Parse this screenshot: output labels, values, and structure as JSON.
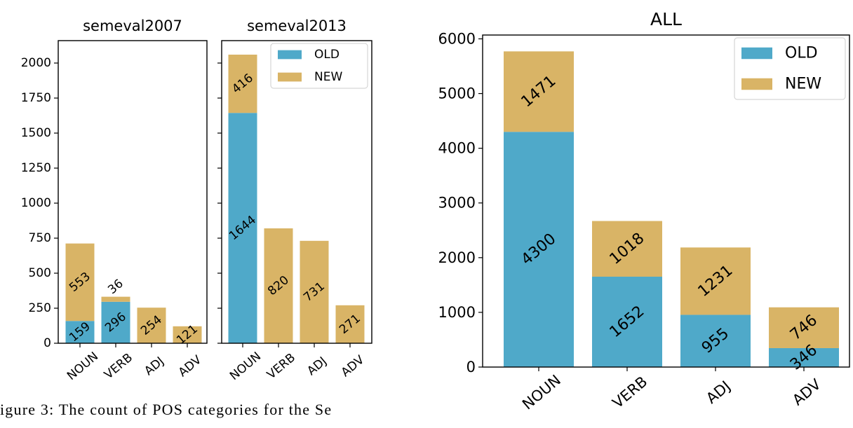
{
  "caption": "igure 3:  The count of POS categories for the Se",
  "colors": {
    "old": "#4fa9c9",
    "new": "#d9b466"
  },
  "legend": {
    "old": "OLD",
    "new": "NEW"
  },
  "chart_data": [
    {
      "type": "bar",
      "title": "semeval2007",
      "categories": [
        "NOUN",
        "VERB",
        "ADJ",
        "ADV"
      ],
      "stacked": true,
      "series": [
        {
          "name": "OLD",
          "values": [
            159,
            296,
            0,
            0
          ],
          "labels": [
            "159",
            "296",
            "",
            ""
          ]
        },
        {
          "name": "NEW",
          "values": [
            553,
            36,
            254,
            121
          ],
          "labels": [
            "553",
            "36",
            "254",
            "121"
          ]
        }
      ],
      "ylim": [
        0,
        2160
      ],
      "yticks": [
        0,
        250,
        500,
        750,
        1000,
        1250,
        1500,
        1750,
        2000
      ],
      "legend": false
    },
    {
      "type": "bar",
      "title": "semeval2013",
      "categories": [
        "NOUN",
        "VERB",
        "ADJ",
        "ADV"
      ],
      "stacked": true,
      "series": [
        {
          "name": "OLD",
          "values": [
            1644,
            0,
            0,
            0
          ],
          "labels": [
            "1644",
            "",
            "",
            ""
          ]
        },
        {
          "name": "NEW",
          "values": [
            416,
            820,
            731,
            271
          ],
          "labels": [
            "416",
            "820",
            "731",
            "271"
          ]
        }
      ],
      "ylim": [
        0,
        2160
      ],
      "yticks": [
        0,
        250,
        500,
        750,
        1000,
        1250,
        1500,
        1750,
        2000
      ],
      "legend": true,
      "legend_position": "top-right"
    },
    {
      "type": "bar",
      "title": "ALL",
      "categories": [
        "NOUN",
        "VERB",
        "ADJ",
        "ADV"
      ],
      "stacked": true,
      "series": [
        {
          "name": "OLD",
          "values": [
            4300,
            1652,
            955,
            346
          ],
          "labels": [
            "4300",
            "1652",
            "955",
            "346"
          ]
        },
        {
          "name": "NEW",
          "values": [
            1471,
            1018,
            1231,
            746
          ],
          "labels": [
            "1471",
            "1018",
            "1231",
            "746"
          ]
        }
      ],
      "ylim": [
        0,
        6070
      ],
      "yticks": [
        0,
        1000,
        2000,
        3000,
        4000,
        5000,
        6000
      ],
      "legend": true,
      "legend_position": "top-right"
    }
  ]
}
